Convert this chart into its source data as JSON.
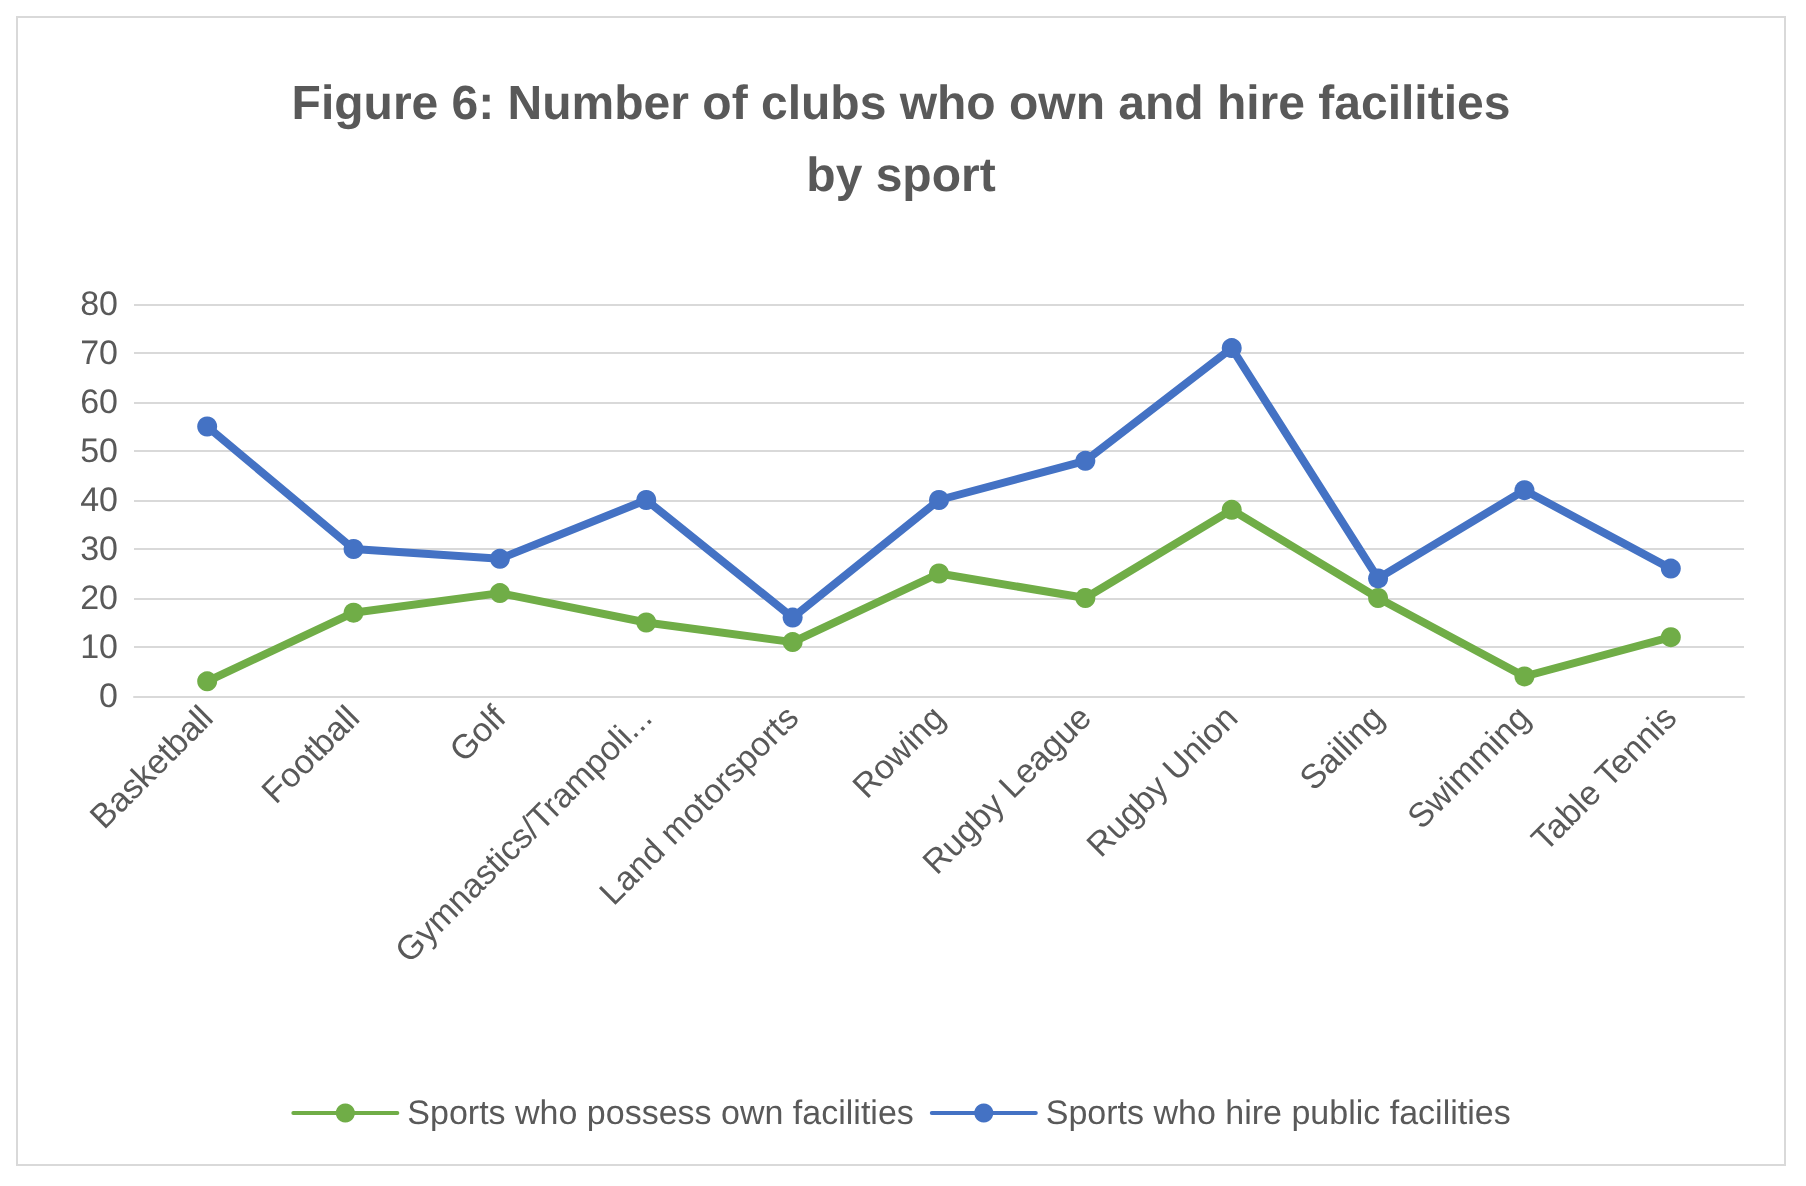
{
  "chart_data": {
    "type": "line",
    "title": "Figure 6: Number of clubs who own and hire facilities\nby sport",
    "categories": [
      "Basketball",
      "Football",
      "Golf",
      "Gymnastics/Trampoli...",
      "Land motorsports",
      "Rowing",
      "Rugby League",
      "Rugby Union",
      "Sailing",
      "Swimming",
      "Table Tennis"
    ],
    "series": [
      {
        "name": "Sports who possess own facilities",
        "color": "#70ad47",
        "values": [
          3,
          17,
          21,
          15,
          11,
          25,
          20,
          38,
          20,
          4,
          12
        ]
      },
      {
        "name": "Sports who hire public facilities",
        "color": "#4472c4",
        "values": [
          55,
          30,
          28,
          40,
          16,
          40,
          48,
          71,
          24,
          42,
          26
        ]
      }
    ],
    "ylim": [
      0,
      80
    ],
    "yticks": [
      0,
      10,
      20,
      30,
      40,
      50,
      60,
      70,
      80
    ],
    "grid": "y",
    "legend": "bottom",
    "marker": "circle",
    "line_style": "solid"
  }
}
